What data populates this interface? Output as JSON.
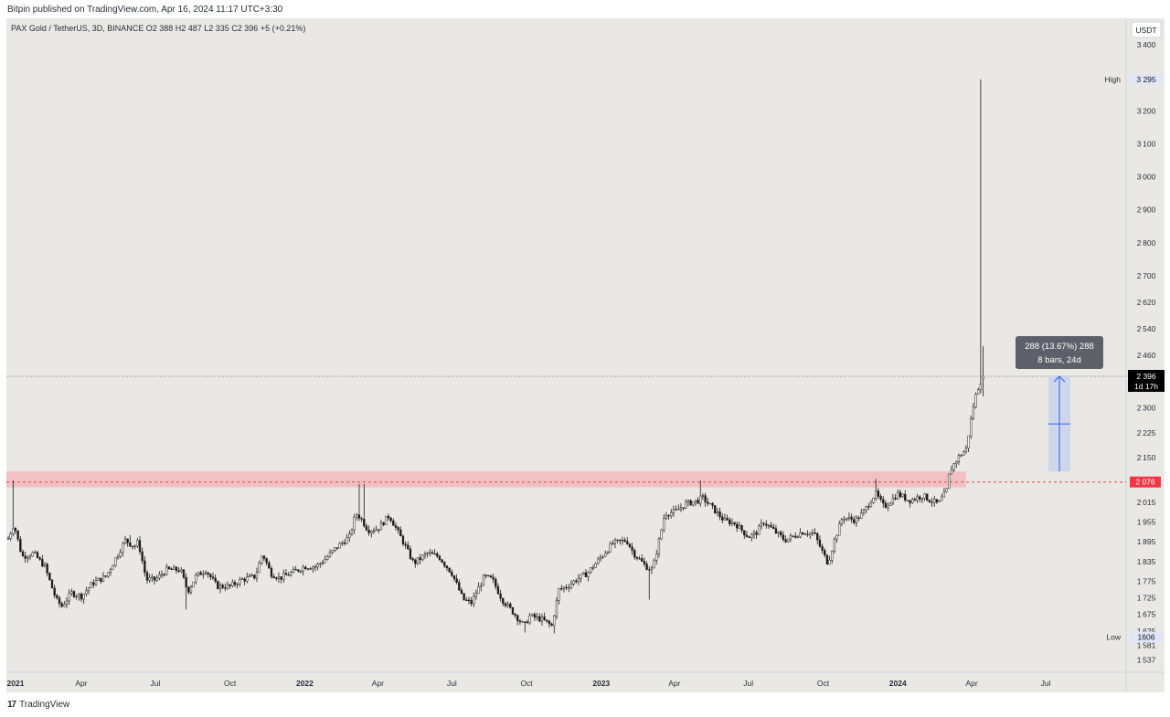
{
  "header": {
    "published_text": "Bitpin published on TradingView.com, Apr 16, 2024 11:17 UTC+3:30"
  },
  "symbol_info": {
    "text": "PAX Gold / TetherUS, 3D, BINANCE  O2 388  H2 487  L2 335  C2 396  +5 (+0.21%)"
  },
  "footer": {
    "logo_mark": "17",
    "logo_name": "TradingView"
  },
  "colors": {
    "background": "#e9e8e4",
    "candle": "#1a1a1a",
    "resistance_zone": "#f2b8bc",
    "resistance_line": "#e0454f",
    "price_label_bg": "#000000",
    "level_label_bg": "#f23645",
    "measure_fill": "#c9d2ea",
    "measure_line": "#2962ff",
    "tooltip_bg": "#5d6069"
  },
  "chart_data": {
    "type": "candlestick",
    "title": "PAX Gold / TetherUS, 3D, BINANCE",
    "currency_label": "USDT",
    "x_ticks": [
      "2021",
      "Apr",
      "Jul",
      "Oct",
      "2022",
      "Apr",
      "Jul",
      "Oct",
      "2023",
      "Apr",
      "Jul",
      "Oct",
      "2024",
      "Apr",
      "Jul"
    ],
    "bold_x_ticks": [
      "2021",
      "2022",
      "2023",
      "2024"
    ],
    "y_ticks": [
      "3400",
      "3200",
      "3100",
      "3000",
      "2900",
      "2800",
      "2700",
      "2620",
      "2540",
      "2460",
      "2300",
      "2225",
      "2150",
      "2015",
      "1955",
      "1895",
      "1835",
      "1775",
      "1725",
      "1675",
      "1625",
      "1581",
      "1537"
    ],
    "ylim": [
      1500,
      3480
    ],
    "ohlc": {
      "open": "2 388",
      "high": "2 487",
      "low": "2 335",
      "close": "2 396",
      "change": "+5 (+0.21%)"
    },
    "current_price": {
      "value": 2396,
      "label": "2 396",
      "countdown": "1d 17h"
    },
    "high_marker": {
      "label": "High",
      "value": 3295,
      "display": "3 295"
    },
    "low_marker": {
      "label": "Low",
      "value": 1606,
      "display": "1606"
    },
    "resistance": {
      "value": 2076,
      "label": "2 076",
      "zone_low": 2060,
      "zone_high": 2108
    },
    "measure": {
      "from": 2108,
      "to": 2396,
      "line1": "288 (13.67%) 288",
      "line2": "8 bars, 24d"
    },
    "closes_path": [
      [
        "2021-01-01",
        1905
      ],
      [
        "2021-01-08",
        1950
      ],
      [
        "2021-01-18",
        1850
      ],
      [
        "2021-02-01",
        1860
      ],
      [
        "2021-02-15",
        1820
      ],
      [
        "2021-03-01",
        1720
      ],
      [
        "2021-03-08",
        1700
      ],
      [
        "2021-03-20",
        1740
      ],
      [
        "2021-04-01",
        1730
      ],
      [
        "2021-04-15",
        1770
      ],
      [
        "2021-05-01",
        1790
      ],
      [
        "2021-05-10",
        1830
      ],
      [
        "2021-05-25",
        1900
      ],
      [
        "2021-06-05",
        1880
      ],
      [
        "2021-06-10",
        1895
      ],
      [
        "2021-06-20",
        1780
      ],
      [
        "2021-07-01",
        1780
      ],
      [
        "2021-07-15",
        1810
      ],
      [
        "2021-08-01",
        1810
      ],
      [
        "2021-08-10",
        1745
      ],
      [
        "2021-08-20",
        1790
      ],
      [
        "2021-09-01",
        1810
      ],
      [
        "2021-09-15",
        1760
      ],
      [
        "2021-10-01",
        1760
      ],
      [
        "2021-10-15",
        1780
      ],
      [
        "2021-11-01",
        1790
      ],
      [
        "2021-11-10",
        1860
      ],
      [
        "2021-11-20",
        1800
      ],
      [
        "2021-12-01",
        1785
      ],
      [
        "2021-12-15",
        1800
      ],
      [
        "2022-01-01",
        1820
      ],
      [
        "2022-01-15",
        1820
      ],
      [
        "2022-01-25",
        1840
      ],
      [
        "2022-02-10",
        1880
      ],
      [
        "2022-02-25",
        1910
      ],
      [
        "2022-03-05",
        1980
      ],
      [
        "2022-03-10",
        1970
      ],
      [
        "2022-03-20",
        1930
      ],
      [
        "2022-04-01",
        1935
      ],
      [
        "2022-04-15",
        1975
      ],
      [
        "2022-05-01",
        1900
      ],
      [
        "2022-05-15",
        1830
      ],
      [
        "2022-06-01",
        1860
      ],
      [
        "2022-06-15",
        1850
      ],
      [
        "2022-07-01",
        1800
      ],
      [
        "2022-07-15",
        1720
      ],
      [
        "2022-07-25",
        1710
      ],
      [
        "2022-08-10",
        1790
      ],
      [
        "2022-08-20",
        1780
      ],
      [
        "2022-09-01",
        1720
      ],
      [
        "2022-09-15",
        1680
      ],
      [
        "2022-09-28",
        1640
      ],
      [
        "2022-10-05",
        1670
      ],
      [
        "2022-10-20",
        1660
      ],
      [
        "2022-11-01",
        1640
      ],
      [
        "2022-11-10",
        1750
      ],
      [
        "2022-11-20",
        1760
      ],
      [
        "2022-12-01",
        1780
      ],
      [
        "2022-12-15",
        1800
      ],
      [
        "2023-01-01",
        1850
      ],
      [
        "2023-01-15",
        1890
      ],
      [
        "2023-02-01",
        1900
      ],
      [
        "2023-02-10",
        1860
      ],
      [
        "2023-02-25",
        1820
      ],
      [
        "2023-03-05",
        1810
      ],
      [
        "2023-03-15",
        1920
      ],
      [
        "2023-03-20",
        1980
      ],
      [
        "2023-04-01",
        1985
      ],
      [
        "2023-04-15",
        2010
      ],
      [
        "2023-05-01",
        2020
      ],
      [
        "2023-05-05",
        2030
      ],
      [
        "2023-05-15",
        2005
      ],
      [
        "2023-06-01",
        1960
      ],
      [
        "2023-06-15",
        1950
      ],
      [
        "2023-07-01",
        1910
      ],
      [
        "2023-07-10",
        1920
      ],
      [
        "2023-07-20",
        1955
      ],
      [
        "2023-08-01",
        1930
      ],
      [
        "2023-08-15",
        1900
      ],
      [
        "2023-08-25",
        1910
      ],
      [
        "2023-09-05",
        1925
      ],
      [
        "2023-09-20",
        1920
      ],
      [
        "2023-10-01",
        1860
      ],
      [
        "2023-10-07",
        1830
      ],
      [
        "2023-10-15",
        1900
      ],
      [
        "2023-10-25",
        1970
      ],
      [
        "2023-11-10",
        1960
      ],
      [
        "2023-11-20",
        1985
      ],
      [
        "2023-12-01",
        2030
      ],
      [
        "2023-12-05",
        2040
      ],
      [
        "2023-12-15",
        2000
      ],
      [
        "2024-01-01",
        2040
      ],
      [
        "2024-01-15",
        2020
      ],
      [
        "2024-02-01",
        2035
      ],
      [
        "2024-02-10",
        2020
      ],
      [
        "2024-02-20",
        2010
      ],
      [
        "2024-03-01",
        2050
      ],
      [
        "2024-03-05",
        2110
      ],
      [
        "2024-03-15",
        2150
      ],
      [
        "2024-03-25",
        2175
      ],
      [
        "2024-04-01",
        2280
      ],
      [
        "2024-04-05",
        2330
      ],
      [
        "2024-04-10",
        2370
      ],
      [
        "2024-04-15",
        2396
      ]
    ],
    "extreme_wicks": [
      {
        "date": "2021-01-06",
        "high": 2080
      },
      {
        "date": "2021-06-01",
        "high": 1915
      },
      {
        "date": "2021-08-09",
        "low": 1690
      },
      {
        "date": "2022-03-08",
        "high": 2070
      },
      {
        "date": "2022-03-14",
        "high": 2070
      },
      {
        "date": "2022-09-28",
        "low": 1620
      },
      {
        "date": "2022-11-03",
        "low": 1618
      },
      {
        "date": "2023-02-28",
        "low": 1720
      },
      {
        "date": "2023-05-04",
        "high": 2080
      },
      {
        "date": "2023-12-04",
        "high": 2085
      },
      {
        "date": "2024-04-12",
        "high": 3295
      }
    ]
  }
}
